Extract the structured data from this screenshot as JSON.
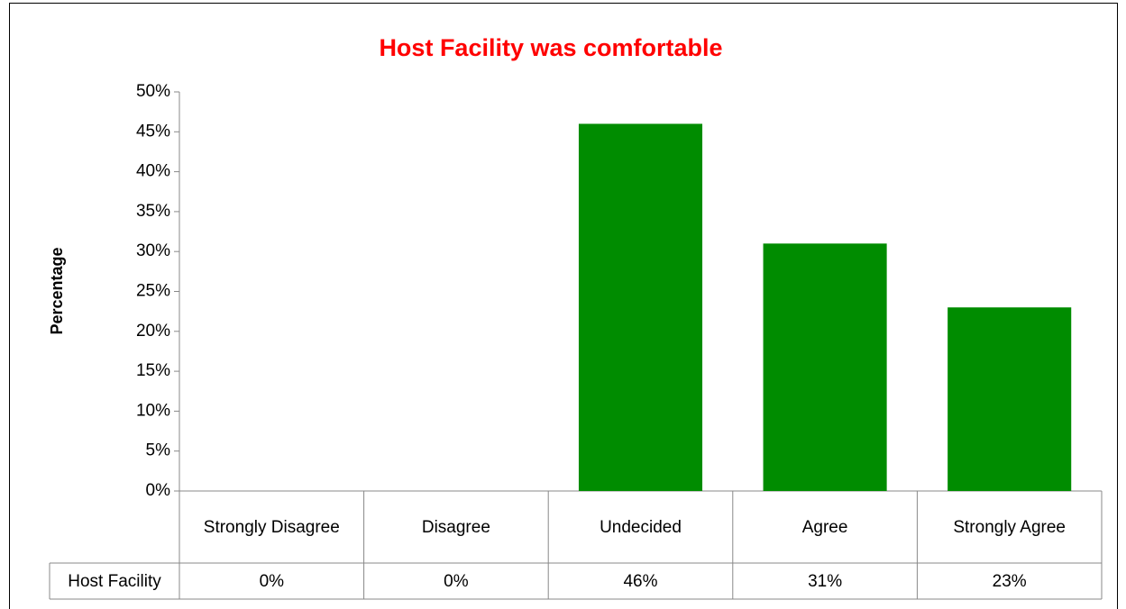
{
  "chart_data": {
    "type": "bar",
    "title": "Host Facility was comfortable",
    "y_label": "Percentage",
    "categories": [
      "Strongly Disagree",
      "Disagree",
      "Undecided",
      "Agree",
      "Strongly Agree"
    ],
    "series": [
      {
        "name": "Host Facility",
        "color": "#008c00",
        "values": [
          0,
          0,
          46,
          31,
          23
        ],
        "value_labels": [
          "0%",
          "0%",
          "46%",
          "31%",
          "23%"
        ]
      }
    ],
    "ylim": [
      0,
      50
    ],
    "yticks": [
      {
        "value": 0,
        "label": "0%"
      },
      {
        "value": 5,
        "label": "5%"
      },
      {
        "value": 10,
        "label": "10%"
      },
      {
        "value": 15,
        "label": "15%"
      },
      {
        "value": 20,
        "label": "20%"
      },
      {
        "value": 25,
        "label": "25%"
      },
      {
        "value": 30,
        "label": "30%"
      },
      {
        "value": 35,
        "label": "35%"
      },
      {
        "value": 40,
        "label": "40%"
      },
      {
        "value": 45,
        "label": "45%"
      },
      {
        "value": 50,
        "label": "50%"
      }
    ],
    "grid": false,
    "data_table": true
  }
}
